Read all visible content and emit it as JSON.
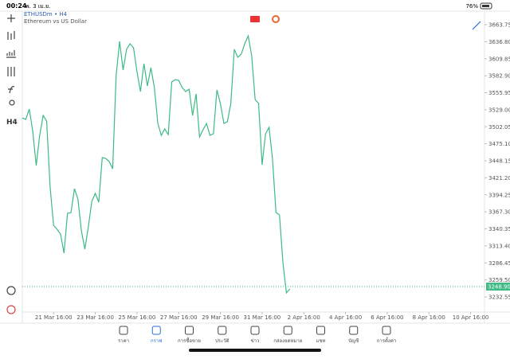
{
  "status_bar": {
    "time": "00:24",
    "date": "พ. 3 เม.ย.",
    "battery": "76%"
  },
  "toolbar": {
    "timeframe": "H4"
  },
  "chart_data": {
    "type": "line",
    "title": "ETHUSDm • H4",
    "subtitle": "Ethereum vs US Dollar",
    "color": "#3dba85",
    "values": [
      3516.2,
      3513.7,
      3530.1,
      3494.8,
      3440.6,
      3488.5,
      3520.0,
      3511.2,
      3406.6,
      3346.0,
      3339.7,
      3332.2,
      3301.9,
      3364.9,
      3366.0,
      3404.0,
      3387.6,
      3337.2,
      3308.2,
      3343.5,
      3383.9,
      3396.5,
      3382.6,
      3453.2,
      3452.0,
      3446.9,
      3435.6,
      3583.1,
      3637.3,
      3591.9,
      3624.7,
      3633.5,
      3627.2,
      3589.4,
      3557.8,
      3602.0,
      3566.7,
      3595.7,
      3564.2,
      3507.4,
      3488.5,
      3498.6,
      3489.5,
      3573.0,
      3576.8,
      3575.5,
      3564.2,
      3557.8,
      3561.6,
      3520.0,
      3554.1,
      3486.0,
      3497.3,
      3507.4,
      3488.5,
      3491.0,
      3560.4,
      3538.9,
      3507.4,
      3509.9,
      3538.9,
      3624.7,
      3612.1,
      3617.1,
      3633.5,
      3646.1,
      3614.6,
      3545.2,
      3538.9,
      3441.9,
      3491.0,
      3501.1,
      3450.7,
      3366.2,
      3362.4,
      3286.8,
      3238.9,
      3245.2
    ],
    "xlim": [
      0,
      133
    ],
    "xticks": [
      {
        "value": 9,
        "label": "21 Mar 16:00"
      },
      {
        "value": 21,
        "label": "23 Mar 16:00"
      },
      {
        "value": 33,
        "label": "25 Mar 16:00"
      },
      {
        "value": 45,
        "label": "27 Mar 16:00"
      },
      {
        "value": 57,
        "label": "29 Mar 16:00"
      },
      {
        "value": 69,
        "label": "31 Mar 16:00"
      },
      {
        "value": 81,
        "label": "2 Apr 16:00"
      },
      {
        "value": 93,
        "label": "4 Apr 16:00"
      },
      {
        "value": 105,
        "label": "6 Apr 16:00"
      },
      {
        "value": 117,
        "label": "8 Apr 16:00"
      },
      {
        "value": 129,
        "label": "10 Apr 16:00"
      }
    ],
    "ylim": [
      3208.6,
      3685.2
    ],
    "yticks": [
      3663.75,
      {
        "value": 3636.8,
        "label": "3636.80"
      },
      3609.85,
      {
        "value": 3582.9,
        "label": "3582.90"
      },
      3555.95,
      {
        "value": 3529,
        "label": "3529.00"
      },
      3502.05,
      {
        "value": 3475.1,
        "label": "3475.10"
      },
      3448.15,
      {
        "value": 3421.2,
        "label": "3421.20"
      },
      3394.25,
      {
        "value": 3367.3,
        "label": "3367.30"
      },
      3340.35,
      {
        "value": 3313.4,
        "label": "3313.40"
      },
      3286.45,
      {
        "value": 3259.5,
        "label": "3259.50"
      },
      3232.55
    ],
    "current_price": {
      "value": 3248.9,
      "label": "3248.90"
    },
    "grid": false
  },
  "nav": {
    "items": [
      "ราคา",
      "กราฟ",
      "การซื้อขาย",
      "ประวัติ",
      "ข่าว",
      "กล่องจดหมาย",
      "แชท",
      "บัญชี",
      "การตั้งค่า"
    ],
    "active": 1
  }
}
